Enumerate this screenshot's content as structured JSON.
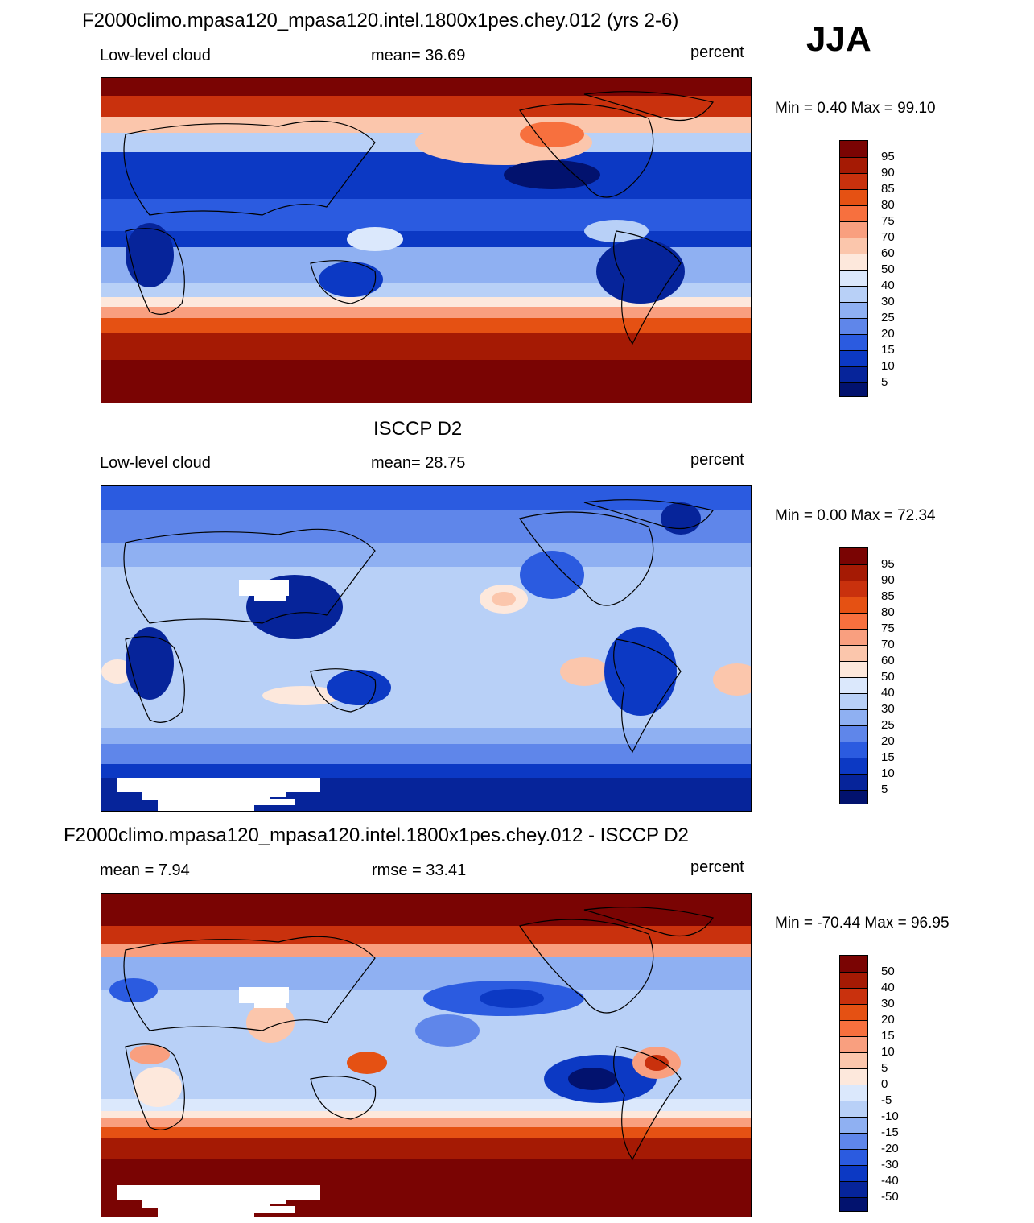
{
  "season": "JJA",
  "panels": [
    {
      "title": "F2000climo.mpasa120_mpasa120.intel.1800x1pes.chey.012 (yrs 2-6)",
      "left_label": "Low-level cloud",
      "center_label": "mean=  36.69",
      "units": "percent",
      "minmax": "Min =   0.40 Max =  99.10",
      "colorbar_ticks": [
        "95",
        "90",
        "85",
        "80",
        "75",
        "70",
        "60",
        "50",
        "40",
        "30",
        "25",
        "20",
        "15",
        "10",
        "5"
      ]
    },
    {
      "title": "ISCCP D2",
      "left_label": "Low-level cloud",
      "center_label": "mean=  28.75",
      "units": "percent",
      "minmax": "Min =   0.00 Max =  72.34",
      "colorbar_ticks": [
        "95",
        "90",
        "85",
        "80",
        "75",
        "70",
        "60",
        "50",
        "40",
        "30",
        "25",
        "20",
        "15",
        "10",
        "5"
      ]
    },
    {
      "title": "F2000climo.mpasa120_mpasa120.intel.1800x1pes.chey.012 - ISCCP D2",
      "left_label": "mean =   7.94",
      "center_label": "rmse =  33.41",
      "units": "percent",
      "minmax": "Min = -70.44 Max =  96.95",
      "colorbar_ticks": [
        "50",
        "40",
        "30",
        "20",
        "15",
        "10",
        "5",
        "0",
        "-5",
        "-10",
        "-15",
        "-20",
        "-30",
        "-40",
        "-50"
      ]
    }
  ],
  "colors": {
    "palette": [
      "#7a0403",
      "#a51a04",
      "#c9310d",
      "#e55113",
      "#f7703e",
      "#f99f7f",
      "#fbc6ac",
      "#fde8dc",
      "#dbe8fc",
      "#b8d0f7",
      "#8fb0f2",
      "#5f86ea",
      "#2b5be0",
      "#0c39c4",
      "#06249a",
      "#02126e"
    ],
    "land_line": "#000000",
    "missing": "#ffffff"
  }
}
